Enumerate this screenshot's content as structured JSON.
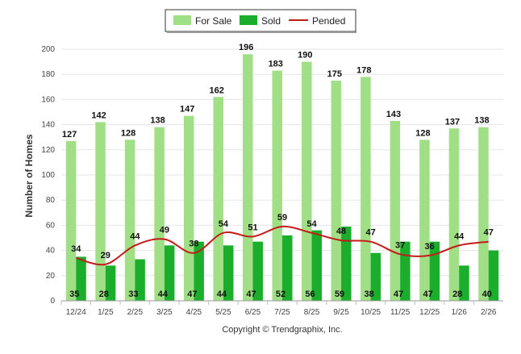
{
  "chart_data": {
    "type": "bar",
    "categories": [
      "12/24",
      "1/25",
      "2/25",
      "3/25",
      "4/25",
      "5/25",
      "6/25",
      "7/25",
      "8/25",
      "9/25",
      "10/25",
      "11/25",
      "12/25",
      "1/26",
      "2/26"
    ],
    "series": [
      {
        "name": "For Sale",
        "kind": "bar",
        "color": "#a0df85",
        "values": [
          127,
          142,
          128,
          138,
          147,
          162,
          196,
          183,
          190,
          175,
          178,
          143,
          128,
          137,
          138
        ]
      },
      {
        "name": "Sold",
        "kind": "bar",
        "color": "#1aae2c",
        "values": [
          35,
          28,
          33,
          44,
          47,
          44,
          47,
          52,
          56,
          59,
          38,
          47,
          47,
          28,
          40
        ]
      },
      {
        "name": "Pended",
        "kind": "line",
        "color": "#c41a1a",
        "values": [
          34,
          29,
          44,
          49,
          38,
          54,
          51,
          59,
          54,
          48,
          47,
          37,
          36,
          44,
          47
        ]
      }
    ],
    "xlabel": "",
    "ylabel": "Number of Homes",
    "ylim": [
      0,
      200
    ],
    "yticks": [
      0,
      20,
      40,
      60,
      80,
      100,
      120,
      140,
      160,
      180,
      200
    ],
    "grid": true,
    "legend": "top-center",
    "footer": "Copyright © Trendgraphix, Inc."
  }
}
